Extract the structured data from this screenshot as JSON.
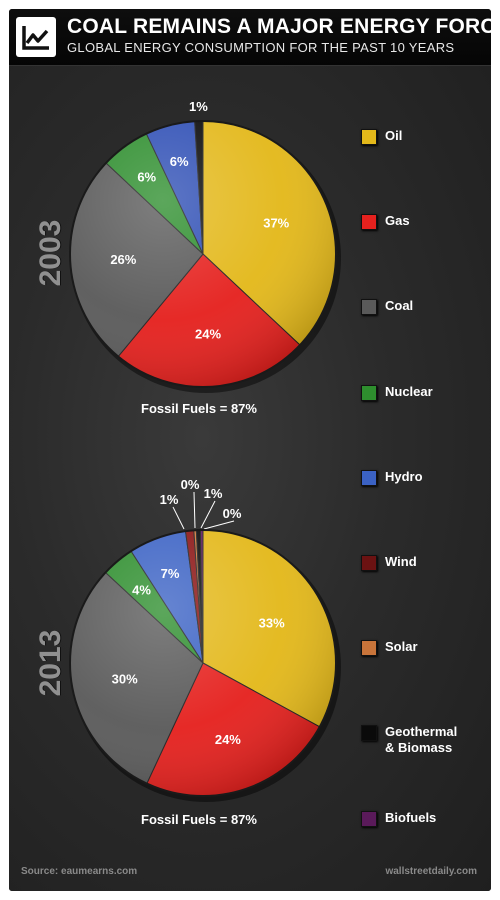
{
  "header": {
    "title": "COAL REMAINS A MAJOR ENERGY FORCE",
    "subtitle": "GLOBAL ENERGY CONSUMPTION FOR THE PAST 10 YEARS",
    "logo_icon": "line-chart-icon"
  },
  "chart_data": [
    {
      "type": "pie",
      "year": "2003",
      "caption": "Fossil Fuels = 87%",
      "slices": [
        {
          "name": "Oil",
          "value": 37,
          "label": "37%",
          "color": "#e3b81a"
        },
        {
          "name": "Gas",
          "value": 24,
          "label": "24%",
          "color": "#e5211e"
        },
        {
          "name": "Coal",
          "value": 26,
          "label": "26%",
          "color": "#5a5a5a"
        },
        {
          "name": "Nuclear",
          "value": 6,
          "label": "6%",
          "color": "#2e8e2e"
        },
        {
          "name": "Hydro",
          "value": 6,
          "label": "6%",
          "color": "#2f4fb5"
        },
        {
          "name": "Geothermal & Biomass",
          "value": 1,
          "label": "1%",
          "color": "#0a0a0a"
        }
      ]
    },
    {
      "type": "pie",
      "year": "2013",
      "caption": "Fossil Fuels = 87%",
      "slices": [
        {
          "name": "Oil",
          "value": 33,
          "label": "33%",
          "color": "#e3b81a"
        },
        {
          "name": "Gas",
          "value": 24,
          "label": "24%",
          "color": "#e5211e"
        },
        {
          "name": "Coal",
          "value": 30,
          "label": "30%",
          "color": "#5a5a5a"
        },
        {
          "name": "Nuclear",
          "value": 4,
          "label": "4%",
          "color": "#2e8e2e"
        },
        {
          "name": "Hydro",
          "value": 7,
          "label": "7%",
          "color": "#3b62c4"
        },
        {
          "name": "Wind",
          "value": 1,
          "label": "1%",
          "color": "#8a1414"
        },
        {
          "name": "Solar",
          "value": 0.3,
          "label": "0%",
          "color": "#d2793a"
        },
        {
          "name": "Geothermal & Biomass",
          "value": 0.5,
          "label": "1%",
          "color": "#0a0a0a"
        },
        {
          "name": "Biofuels",
          "value": 0.3,
          "label": "0%",
          "color": "#6a1a6a"
        }
      ]
    }
  ],
  "legend": [
    {
      "label": "Oil",
      "color": "#e3b81a"
    },
    {
      "label": "Gas",
      "color": "#e5211e"
    },
    {
      "label": "Coal",
      "color": "#5a5a5a"
    },
    {
      "label": "Nuclear",
      "color": "#2e8e2e"
    },
    {
      "label": "Hydro",
      "color": "#3b62c4"
    },
    {
      "label": "Wind",
      "color": "#6b1212"
    },
    {
      "label": "Solar",
      "color": "#c8743a"
    },
    {
      "label": "Geothermal\n& Biomass",
      "color": "#0a0a0a"
    },
    {
      "label": "Biofuels",
      "color": "#5a1a5a"
    }
  ],
  "footer": {
    "source": "Source: eaumearns.com",
    "brand": "wallstreetdaily.com"
  }
}
